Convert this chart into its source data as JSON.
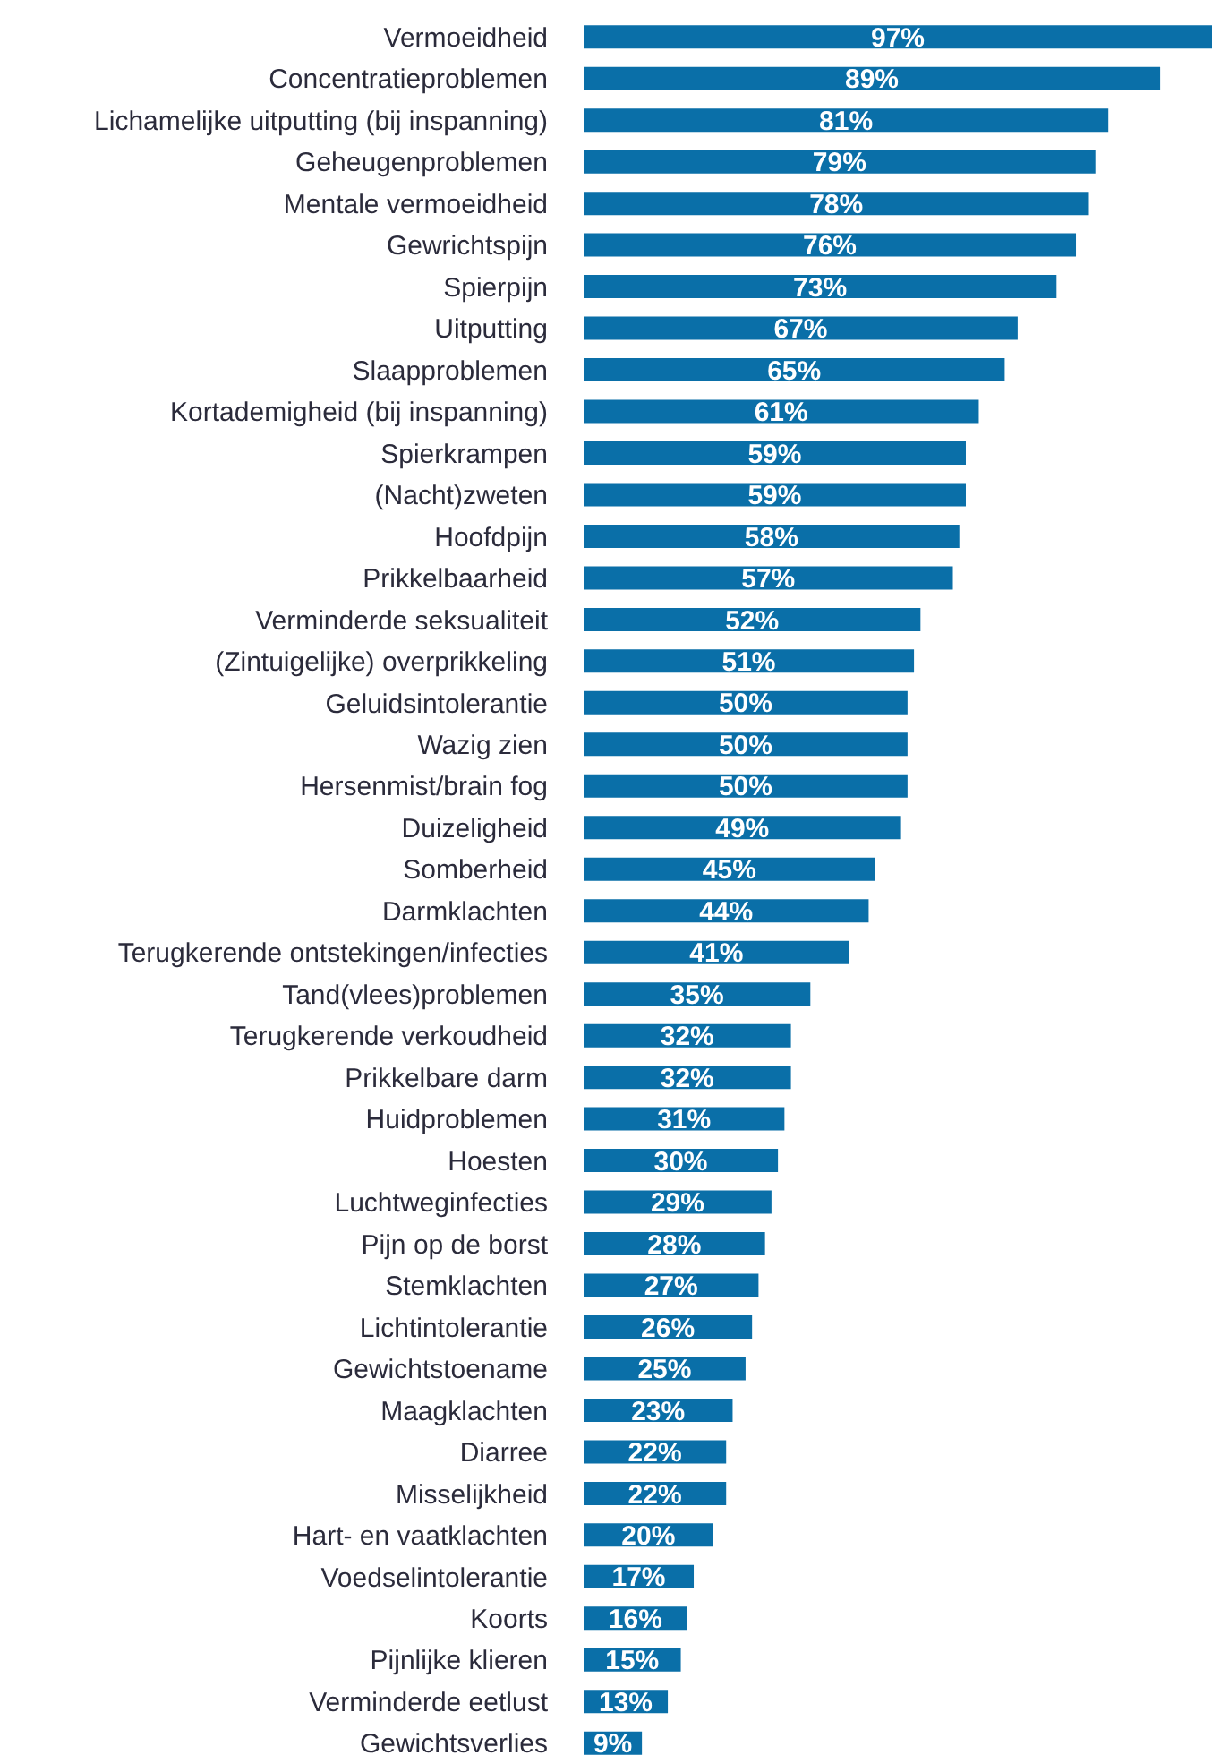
{
  "chart_data": {
    "type": "bar",
    "orientation": "horizontal",
    "color": "#0a6fa8",
    "categories": [
      "Vermoeidheid",
      "Concentratieproblemen",
      "Lichamelijke uitputting (bij inspanning)",
      "Geheugenproblemen",
      "Mentale vermoeidheid",
      "Gewrichtspijn",
      "Spierpijn",
      "Uitputting",
      "Slaapproblemen",
      "Kortademigheid (bij inspanning)",
      "Spierkrampen",
      "(Nacht)zweten",
      "Hoofdpijn",
      "Prikkelbaarheid",
      "Verminderde seksualiteit",
      "(Zintuigelijke) overprikkeling",
      "Geluidsintolerantie",
      "Wazig zien",
      "Hersenmist/brain fog",
      "Duizeligheid",
      "Somberheid",
      "Darmklachten",
      "Terugkerende ontstekingen/infecties",
      "Tand(vlees)problemen",
      "Terugkerende verkoudheid",
      "Prikkelbare darm",
      "Huidproblemen",
      "Hoesten",
      "Luchtweginfecties",
      "Pijn op de borst",
      "Stemklachten",
      "Lichtintolerantie",
      "Gewichtstoename",
      "Maagklachten",
      "Diarree",
      "Misselijkheid",
      "Hart- en vaatklachten",
      "Voedselintolerantie",
      "Koorts",
      "Pijnlijke klieren",
      "Verminderde eetlust",
      "Gewichtsverlies"
    ],
    "values": [
      97,
      89,
      81,
      79,
      78,
      76,
      73,
      67,
      65,
      61,
      59,
      59,
      58,
      57,
      52,
      51,
      50,
      50,
      50,
      49,
      45,
      44,
      41,
      35,
      32,
      32,
      31,
      30,
      29,
      28,
      27,
      26,
      25,
      23,
      22,
      22,
      20,
      17,
      16,
      15,
      13,
      9
    ],
    "value_labels": [
      "97%",
      "89%",
      "81%",
      "79%",
      "78%",
      "76%",
      "73%",
      "67%",
      "65%",
      "61%",
      "59%",
      "59%",
      "58%",
      "57%",
      "52%",
      "51%",
      "50%",
      "50%",
      "50%",
      "49%",
      "45%",
      "44%",
      "41%",
      "35%",
      "32%",
      "32%",
      "31%",
      "30%",
      "29%",
      "28%",
      "27%",
      "26%",
      "25%",
      "23%",
      "22%",
      "22%",
      "20%",
      "17%",
      "16%",
      "15%",
      "13%",
      "9%"
    ],
    "grid": false,
    "legend": false
  }
}
